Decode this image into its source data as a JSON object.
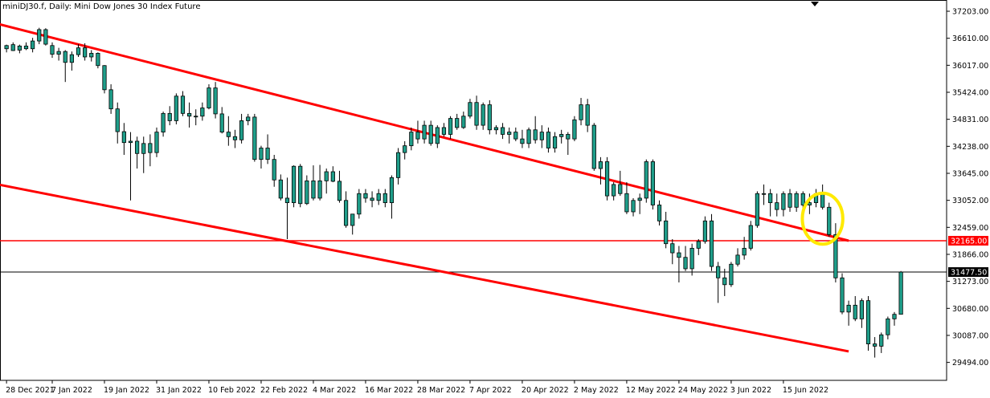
{
  "chart_data": {
    "type": "candlestick",
    "title": "miniDJ30.f, Daily:  Mini Dow Jones 30 Index Future",
    "colors": {
      "up": "#1f9e8a",
      "down": "#1f9e8a",
      "wick": "#000000",
      "trendline": "#ff0000",
      "highlight": "#ffea00",
      "grid_text": "#000000"
    },
    "ylim": [
      29100,
      37450
    ],
    "y_ticks": [
      "37203.00",
      "36610.00",
      "36017.00",
      "35424.00",
      "34831.00",
      "34238.00",
      "33645.00",
      "33052.00",
      "32459.00",
      "31866.00",
      "31273.00",
      "30680.00",
      "30087.00",
      "29494.00"
    ],
    "x_ticks": [
      {
        "label": "28 Dec 2021",
        "i": 0
      },
      {
        "label": "7 Jan 2022",
        "i": 7
      },
      {
        "label": "19 Jan 2022",
        "i": 15
      },
      {
        "label": "31 Jan 2022",
        "i": 23
      },
      {
        "label": "10 Feb 2022",
        "i": 31
      },
      {
        "label": "22 Feb 2022",
        "i": 39
      },
      {
        "label": "4 Mar 2022",
        "i": 47
      },
      {
        "label": "16 Mar 2022",
        "i": 55
      },
      {
        "label": "28 Mar 2022",
        "i": 63
      },
      {
        "label": "7 Apr 2022",
        "i": 71
      },
      {
        "label": "20 Apr 2022",
        "i": 79
      },
      {
        "label": "2 May 2022",
        "i": 87
      },
      {
        "label": "12 May 2022",
        "i": 95
      },
      {
        "label": "24 May 2022",
        "i": 103
      },
      {
        "label": "3 Jun 2022",
        "i": 111
      },
      {
        "label": "15 Jun 2022",
        "i": 119
      }
    ],
    "candles": [
      [
        36380,
        36470,
        36300,
        36450
      ],
      [
        36470,
        36520,
        36330,
        36340
      ],
      [
        36350,
        36470,
        36280,
        36440
      ],
      [
        36440,
        36520,
        36350,
        36380
      ],
      [
        36380,
        36620,
        36300,
        36550
      ],
      [
        36550,
        36840,
        36480,
        36800
      ],
      [
        36800,
        36830,
        36450,
        36480
      ],
      [
        36450,
        36520,
        36180,
        36260
      ],
      [
        36260,
        36400,
        36120,
        36320
      ],
      [
        36320,
        36350,
        35650,
        36080
      ],
      [
        36080,
        36320,
        35900,
        36250
      ],
      [
        36250,
        36480,
        36200,
        36400
      ],
      [
        36400,
        36500,
        36120,
        36200
      ],
      [
        36200,
        36350,
        36100,
        36280
      ],
      [
        36280,
        36300,
        35950,
        36010
      ],
      [
        36010,
        36020,
        35400,
        35480
      ],
      [
        35480,
        35600,
        34950,
        35060
      ],
      [
        35060,
        35200,
        34300,
        34560
      ],
      [
        34560,
        34750,
        34050,
        34320
      ],
      [
        34320,
        34550,
        33050,
        34350
      ],
      [
        34350,
        34450,
        33750,
        34080
      ],
      [
        34080,
        34450,
        33650,
        34300
      ],
      [
        34300,
        34500,
        33800,
        34100
      ],
      [
        34100,
        34650,
        34000,
        34550
      ],
      [
        34550,
        35000,
        34450,
        34960
      ],
      [
        34960,
        35120,
        34700,
        34800
      ],
      [
        34800,
        35400,
        34720,
        35340
      ],
      [
        35340,
        35450,
        34900,
        34960
      ],
      [
        34960,
        35200,
        34650,
        34900
      ],
      [
        34900,
        35050,
        34700,
        34900
      ],
      [
        34900,
        35200,
        34800,
        35080
      ],
      [
        35080,
        35600,
        35050,
        35520
      ],
      [
        35520,
        35650,
        34850,
        34950
      ],
      [
        34950,
        35100,
        34520,
        34550
      ],
      [
        34550,
        34900,
        34250,
        34450
      ],
      [
        34450,
        34600,
        34200,
        34380
      ],
      [
        34380,
        34950,
        34300,
        34800
      ],
      [
        34800,
        34950,
        34700,
        34880
      ],
      [
        34880,
        34950,
        33900,
        33950
      ],
      [
        33950,
        34250,
        33750,
        34200
      ],
      [
        34200,
        34500,
        33850,
        33950
      ],
      [
        33950,
        34050,
        33350,
        33500
      ],
      [
        33500,
        33620,
        33050,
        33100
      ],
      [
        33100,
        33550,
        32200,
        33000
      ],
      [
        33000,
        33820,
        32900,
        33800
      ],
      [
        33800,
        33850,
        32900,
        32980
      ],
      [
        32980,
        33600,
        32950,
        33480
      ],
      [
        33480,
        33820,
        33050,
        33100
      ],
      [
        33100,
        33830,
        33050,
        33480
      ],
      [
        33480,
        33750,
        33200,
        33680
      ],
      [
        33680,
        33800,
        33450,
        33470
      ],
      [
        33470,
        33700,
        33000,
        33050
      ],
      [
        33050,
        33250,
        32450,
        32500
      ],
      [
        32500,
        32750,
        32300,
        32750
      ],
      [
        32750,
        33300,
        32650,
        33200
      ],
      [
        33200,
        33300,
        33000,
        33100
      ],
      [
        33100,
        33250,
        32900,
        33050
      ],
      [
        33050,
        33300,
        32950,
        33200
      ],
      [
        33200,
        33300,
        32900,
        33000
      ],
      [
        33000,
        33600,
        32650,
        33550
      ],
      [
        33550,
        34200,
        33400,
        34100
      ],
      [
        34100,
        34350,
        33950,
        34250
      ],
      [
        34250,
        34650,
        34150,
        34550
      ],
      [
        34550,
        34800,
        34300,
        34400
      ],
      [
        34400,
        34800,
        34300,
        34700
      ],
      [
        34700,
        34800,
        34250,
        34300
      ],
      [
        34300,
        34700,
        34200,
        34650
      ],
      [
        34650,
        34750,
        34450,
        34500
      ],
      [
        34500,
        34900,
        34400,
        34850
      ],
      [
        34850,
        34950,
        34600,
        34650
      ],
      [
        34650,
        35000,
        34620,
        34900
      ],
      [
        34900,
        35280,
        34850,
        35200
      ],
      [
        35200,
        35350,
        34600,
        34700
      ],
      [
        34700,
        35200,
        34600,
        35150
      ],
      [
        35150,
        35250,
        34500,
        34600
      ],
      [
        34600,
        34700,
        34500,
        34650
      ],
      [
        34650,
        34750,
        34400,
        34500
      ],
      [
        34500,
        34650,
        34300,
        34550
      ],
      [
        34550,
        34650,
        34350,
        34400
      ],
      [
        34400,
        34600,
        34200,
        34300
      ],
      [
        34300,
        34650,
        34200,
        34600
      ],
      [
        34600,
        34900,
        34300,
        34380
      ],
      [
        34380,
        34700,
        34200,
        34550
      ],
      [
        34550,
        34650,
        34100,
        34200
      ],
      [
        34200,
        34550,
        34100,
        34450
      ],
      [
        34450,
        34600,
        34300,
        34500
      ],
      [
        34500,
        34550,
        34050,
        34400
      ],
      [
        34400,
        34900,
        34350,
        34820
      ],
      [
        34820,
        35300,
        34700,
        35150
      ],
      [
        35150,
        35280,
        34550,
        34700
      ],
      [
        34700,
        34750,
        33700,
        33750
      ],
      [
        33750,
        34000,
        33400,
        33900
      ],
      [
        33900,
        34000,
        33050,
        33150
      ],
      [
        33150,
        33450,
        33050,
        33400
      ],
      [
        33400,
        33700,
        33150,
        33200
      ],
      [
        33200,
        33450,
        32750,
        32800
      ],
      [
        32800,
        33100,
        32700,
        33050
      ],
      [
        33050,
        33200,
        32750,
        33100
      ],
      [
        33100,
        33950,
        33000,
        33900
      ],
      [
        33900,
        33950,
        32850,
        32950
      ],
      [
        32950,
        33050,
        32500,
        32600
      ],
      [
        32600,
        32800,
        32000,
        32100
      ],
      [
        32100,
        32200,
        31650,
        31900
      ],
      [
        31900,
        32050,
        31250,
        31800
      ],
      [
        31800,
        32050,
        31500,
        31550
      ],
      [
        31550,
        32100,
        31400,
        32000
      ],
      [
        32000,
        32200,
        31850,
        32150
      ],
      [
        32150,
        32700,
        32100,
        32600
      ],
      [
        32600,
        32750,
        31500,
        31600
      ],
      [
        31600,
        31700,
        30800,
        31350
      ],
      [
        31350,
        31550,
        30950,
        31200
      ],
      [
        31200,
        31700,
        31150,
        31650
      ],
      [
        31650,
        32000,
        31600,
        31850
      ],
      [
        31850,
        32250,
        31750,
        32000
      ],
      [
        32000,
        32600,
        31950,
        32500
      ],
      [
        32500,
        33250,
        32450,
        33200
      ],
      [
        33200,
        33400,
        32950,
        33200
      ],
      [
        33200,
        33300,
        32700,
        33000
      ],
      [
        33000,
        33200,
        32700,
        32850
      ],
      [
        32850,
        33250,
        32700,
        33200
      ],
      [
        33200,
        33300,
        32800,
        32900
      ],
      [
        32900,
        33250,
        32800,
        33200
      ],
      [
        33200,
        33250,
        32850,
        32950
      ],
      [
        32950,
        33200,
        32750,
        33000
      ],
      [
        33000,
        33300,
        32900,
        33200
      ],
      [
        33200,
        33400,
        32850,
        32900
      ],
      [
        32900,
        33000,
        32250,
        32300
      ],
      [
        32300,
        32550,
        31250,
        31350
      ],
      [
        31350,
        31450,
        30550,
        30600
      ],
      [
        30600,
        30850,
        30300,
        30750
      ],
      [
        30750,
        30950,
        30400,
        30450
      ],
      [
        30450,
        30900,
        30250,
        30850
      ],
      [
        30850,
        30950,
        29750,
        29900
      ],
      [
        29900,
        30050,
        29600,
        29850
      ],
      [
        29850,
        30150,
        29700,
        30100
      ],
      [
        30100,
        30500,
        30000,
        30450
      ],
      [
        30450,
        30600,
        30300,
        30550
      ],
      [
        30550,
        31500,
        30550,
        31477.5
      ]
    ],
    "trendlines": [
      {
        "from": {
          "i": -2,
          "y": 36950
        },
        "to": {
          "i": 129,
          "y": 32165
        }
      },
      {
        "from": {
          "i": -2,
          "y": 33420
        },
        "to": {
          "i": 129,
          "y": 29735
        }
      }
    ],
    "horizontal_lines": [
      {
        "price": 32165.0,
        "label": "32165.00",
        "color": "#ff0000"
      },
      {
        "price": 31477.5,
        "label": "31477.50",
        "color": "#000000"
      }
    ],
    "highlight_ellipse": {
      "i": 125,
      "y": 32650,
      "ri": 3.1,
      "ry": 560
    },
    "x_range": [
      -1,
      144
    ]
  }
}
